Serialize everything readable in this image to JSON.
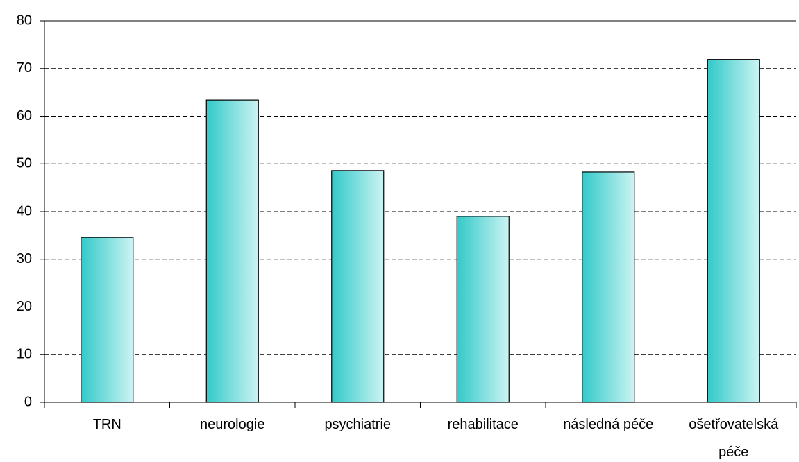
{
  "chart_data": {
    "type": "bar",
    "categories": [
      "TRN",
      "neurologie",
      "psychiatrie",
      "rehabilitace",
      "následná péče",
      "ošetřovatelská péče"
    ],
    "values": [
      34.6,
      63.4,
      48.6,
      39.0,
      48.3,
      71.9
    ],
    "color": "#33c9c9",
    "ylim": [
      0,
      80
    ],
    "yticks": [
      0,
      10,
      20,
      30,
      40,
      50,
      60,
      70,
      80
    ],
    "grid": true
  }
}
